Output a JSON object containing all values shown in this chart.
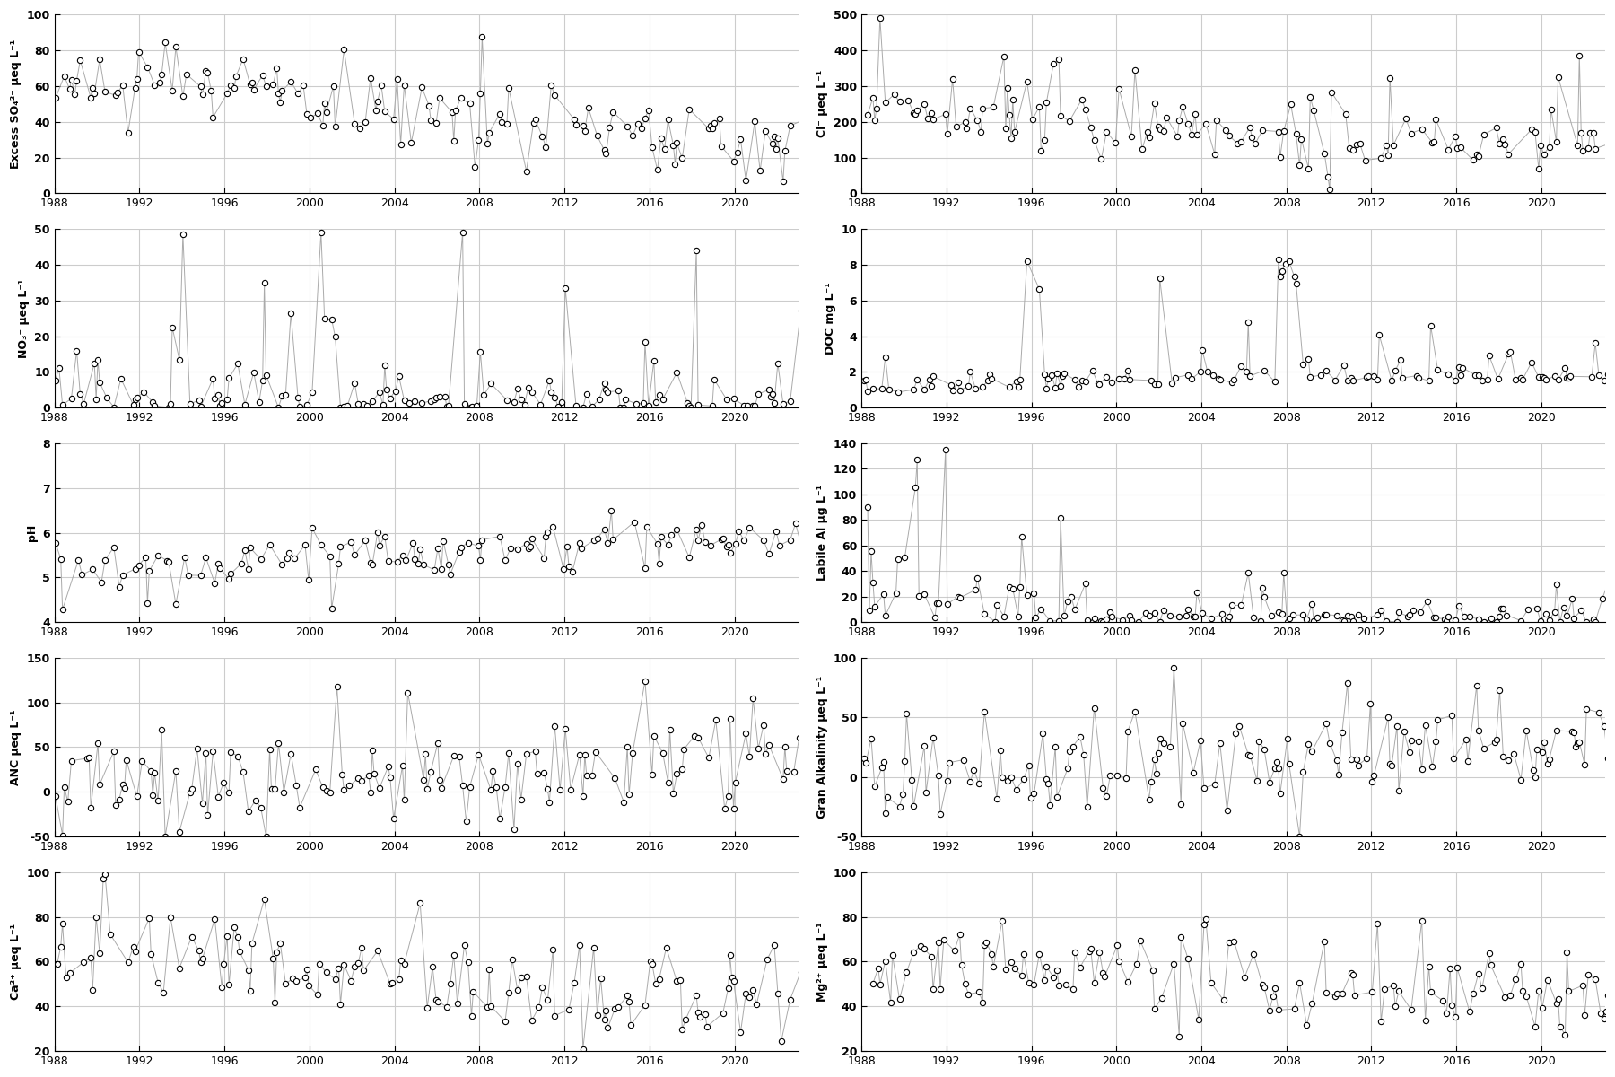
{
  "panels": [
    {
      "row": 0,
      "col": 0,
      "ylabel": "Excess SO₄²⁻ μeq L⁻¹",
      "ylim": [
        0,
        100
      ],
      "yticks": [
        0,
        20,
        40,
        60,
        80,
        100
      ]
    },
    {
      "row": 0,
      "col": 1,
      "ylabel": "Cl⁻ μeq L⁻¹",
      "ylim": [
        0,
        500
      ],
      "yticks": [
        0,
        100,
        200,
        300,
        400,
        500
      ]
    },
    {
      "row": 1,
      "col": 0,
      "ylabel": "NO₃⁻ μeq L⁻¹",
      "ylim": [
        0,
        50
      ],
      "yticks": [
        0,
        10,
        20,
        30,
        40,
        50
      ]
    },
    {
      "row": 1,
      "col": 1,
      "ylabel": "DOC mg L⁻¹",
      "ylim": [
        0,
        10
      ],
      "yticks": [
        0,
        2,
        4,
        6,
        8,
        10
      ]
    },
    {
      "row": 2,
      "col": 0,
      "ylabel": "pH",
      "ylim": [
        4,
        8
      ],
      "yticks": [
        4,
        5,
        6,
        7,
        8
      ]
    },
    {
      "row": 2,
      "col": 1,
      "ylabel": "Labile Al μg L⁻¹",
      "ylim": [
        0,
        140
      ],
      "yticks": [
        0,
        20,
        40,
        60,
        80,
        100,
        120,
        140
      ]
    },
    {
      "row": 3,
      "col": 0,
      "ylabel": "ANC μeq L⁻¹",
      "ylim": [
        -50,
        150
      ],
      "yticks": [
        -50,
        0,
        50,
        100,
        150
      ]
    },
    {
      "row": 3,
      "col": 1,
      "ylabel": "Gran Alkalinity μeq L⁻¹",
      "ylim": [
        -50,
        100
      ],
      "yticks": [
        -50,
        0,
        50,
        100
      ]
    },
    {
      "row": 4,
      "col": 0,
      "ylabel": "Ca²⁺ μeq L⁻¹",
      "ylim": [
        20,
        100
      ],
      "yticks": [
        20,
        40,
        60,
        80,
        100
      ]
    },
    {
      "row": 4,
      "col": 1,
      "ylabel": "Mg²⁺ μeq L⁻¹",
      "ylim": [
        20,
        100
      ],
      "yticks": [
        20,
        40,
        60,
        80,
        100
      ]
    }
  ],
  "xlim": [
    1988,
    2023
  ],
  "xticks": [
    1988,
    1992,
    1996,
    2000,
    2004,
    2008,
    2012,
    2016,
    2020
  ],
  "nrows": 5,
  "ncols": 2,
  "figure_size": [
    18.0,
    12.0
  ],
  "dpi": 100,
  "markersize": 4.5,
  "line_color": "#aaaaaa",
  "linewidth": 0.7,
  "grid_color": "#cccccc",
  "marker_facecolor": "white",
  "marker_edgecolor": "black",
  "marker_edgewidth": 0.8
}
